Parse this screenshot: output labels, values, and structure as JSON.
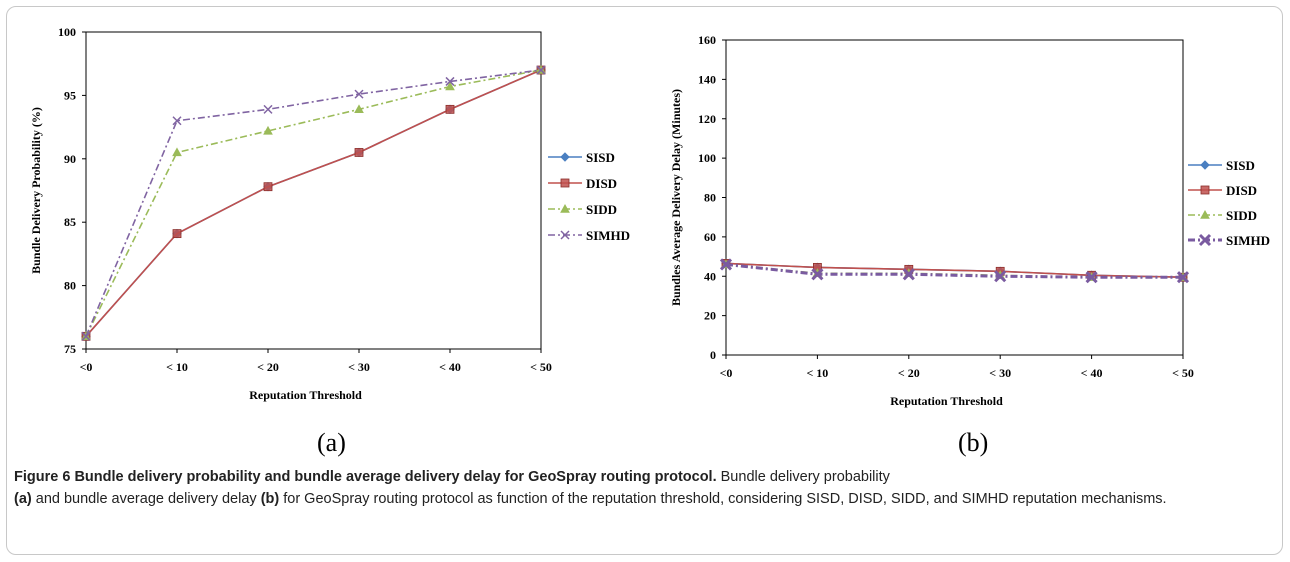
{
  "chart_data": [
    {
      "type": "line",
      "panel": "(a)",
      "xlabel": "Reputation Threshold",
      "ylabel": "Bundle Delivery Probability (%)",
      "categories": [
        "<0",
        "< 10",
        "< 20",
        "< 30",
        "< 40",
        "< 50"
      ],
      "ylim": [
        75,
        100
      ],
      "yticks": [
        75,
        80,
        85,
        90,
        95,
        100
      ],
      "legend_position": "right",
      "grid": false,
      "series": [
        {
          "name": "SISD",
          "color": "#4a7fc1",
          "marker": "diamond",
          "dash": "solid",
          "values": [
            76,
            84.1,
            87.8,
            90.5,
            93.9,
            97
          ]
        },
        {
          "name": "DISD",
          "color": "#c0504d",
          "marker": "square",
          "dash": "solid",
          "values": [
            76,
            84.1,
            87.8,
            90.5,
            93.9,
            97
          ]
        },
        {
          "name": "SIDD",
          "color": "#9bbb59",
          "marker": "triangle",
          "dash": "dashdot",
          "values": [
            76,
            90.5,
            92.2,
            93.9,
            95.7,
            97
          ]
        },
        {
          "name": "SIMHD",
          "color": "#8064a2",
          "marker": "x",
          "dash": "dashdot",
          "values": [
            76,
            93,
            93.9,
            95.1,
            96.1,
            97
          ]
        }
      ]
    },
    {
      "type": "line",
      "panel": "(b)",
      "xlabel": "Reputation Threshold",
      "ylabel": "Bundles Average Delivery Delay (Minutes)",
      "categories": [
        "<0",
        "< 10",
        "< 20",
        "< 30",
        "< 40",
        "< 50"
      ],
      "ylim": [
        0,
        160
      ],
      "yticks": [
        0,
        20,
        40,
        60,
        80,
        100,
        120,
        140,
        160
      ],
      "legend_position": "right",
      "grid": false,
      "series": [
        {
          "name": "SISD",
          "color": "#4a7fc1",
          "marker": "diamond",
          "dash": "solid",
          "values": [
            46.5,
            44.5,
            43.5,
            42.5,
            40.5,
            39.5
          ]
        },
        {
          "name": "DISD",
          "color": "#c0504d",
          "marker": "square",
          "dash": "solid",
          "values": [
            46.5,
            44.5,
            43.5,
            42.5,
            40.5,
            39.5
          ]
        },
        {
          "name": "SIDD",
          "color": "#9bbb59",
          "marker": "triangle",
          "dash": "dashdot",
          "values": [
            46,
            41.5,
            41.5,
            40.5,
            39.5,
            39.5
          ]
        },
        {
          "name": "SIMHD",
          "color": "#7a5ba0",
          "marker": "x",
          "dash": "dashdot",
          "values": [
            46,
            41,
            41,
            40,
            39.5,
            39.5
          ]
        }
      ]
    }
  ],
  "caption": {
    "figure_label": "Figure 6",
    "title": "Bundle delivery probability and bundle average delivery delay for GeoSpray routing protocol.",
    "body_1": "Bundle delivery probability",
    "ref_a": "(a)",
    "body_2": "and bundle average delivery delay",
    "ref_b": "(b)",
    "body_3": "for GeoSpray routing protocol as function of the reputation threshold, considering SISD, DISD, SIDD, and SIMHD reputation mechanisms."
  }
}
